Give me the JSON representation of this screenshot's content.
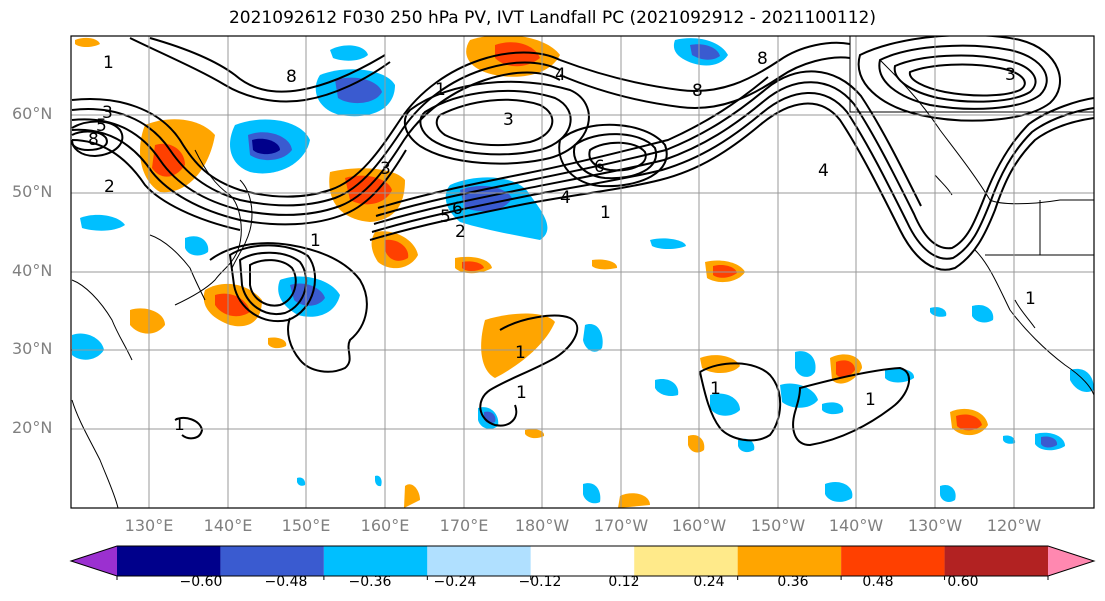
{
  "title": "2021092612 F030 250 hPa PV, IVT Landfall PC (2021092912 - 2021100112)",
  "lat_labels": [
    "60°N",
    "50°N",
    "40°N",
    "30°N",
    "20°N"
  ],
  "lon_labels": [
    "130°E",
    "140°E",
    "150°E",
    "160°E",
    "170°E",
    "180°W",
    "170°W",
    "160°W",
    "150°W",
    "140°W",
    "130°W",
    "120°W"
  ],
  "colorbar": {
    "ticks": [
      "−0.60",
      "−0.48",
      "−0.36",
      "−0.24",
      "−0.12",
      "0.12",
      "0.24",
      "0.36",
      "0.48",
      "0.60"
    ],
    "colors": [
      "#9b30d0",
      "#00008b",
      "#3a5bd0",
      "#00bfff",
      "#b0e0ff",
      "#ffffff",
      "#ffea8a",
      "#ffa500",
      "#ff4000",
      "#b22222",
      "#ff88b0"
    ]
  },
  "contour_labels": [
    "1",
    "8",
    "3",
    "5",
    "8",
    "2",
    "4",
    "3",
    "6",
    "5",
    "4",
    "1",
    "6",
    "3",
    "2",
    "1",
    "1",
    "1",
    "1",
    "1",
    "1",
    "1",
    "8",
    "3",
    "4",
    "8",
    "1"
  ]
}
